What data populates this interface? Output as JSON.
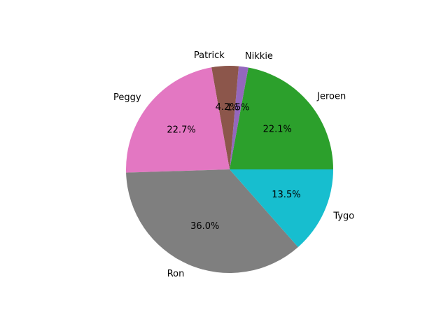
{
  "chart_data": {
    "type": "pie",
    "start_angle_deg": 0,
    "direction": "counterclockwise",
    "slices": [
      {
        "label": "Jeroen",
        "value": 22.1,
        "pct_label": "22.1%",
        "color": "#2ca02c"
      },
      {
        "label": "Nikkie",
        "value": 1.5,
        "pct_label": "1.5%",
        "color": "#9467bd"
      },
      {
        "label": "Patrick",
        "value": 4.2,
        "pct_label": "4.2%",
        "color": "#8c564b"
      },
      {
        "label": "Peggy",
        "value": 22.7,
        "pct_label": "22.7%",
        "color": "#e377c2"
      },
      {
        "label": "Ron",
        "value": 36.0,
        "pct_label": "36.0%",
        "color": "#7f7f7f"
      },
      {
        "label": "Tygo",
        "value": 13.5,
        "pct_label": "13.5%",
        "color": "#17becf"
      }
    ]
  }
}
